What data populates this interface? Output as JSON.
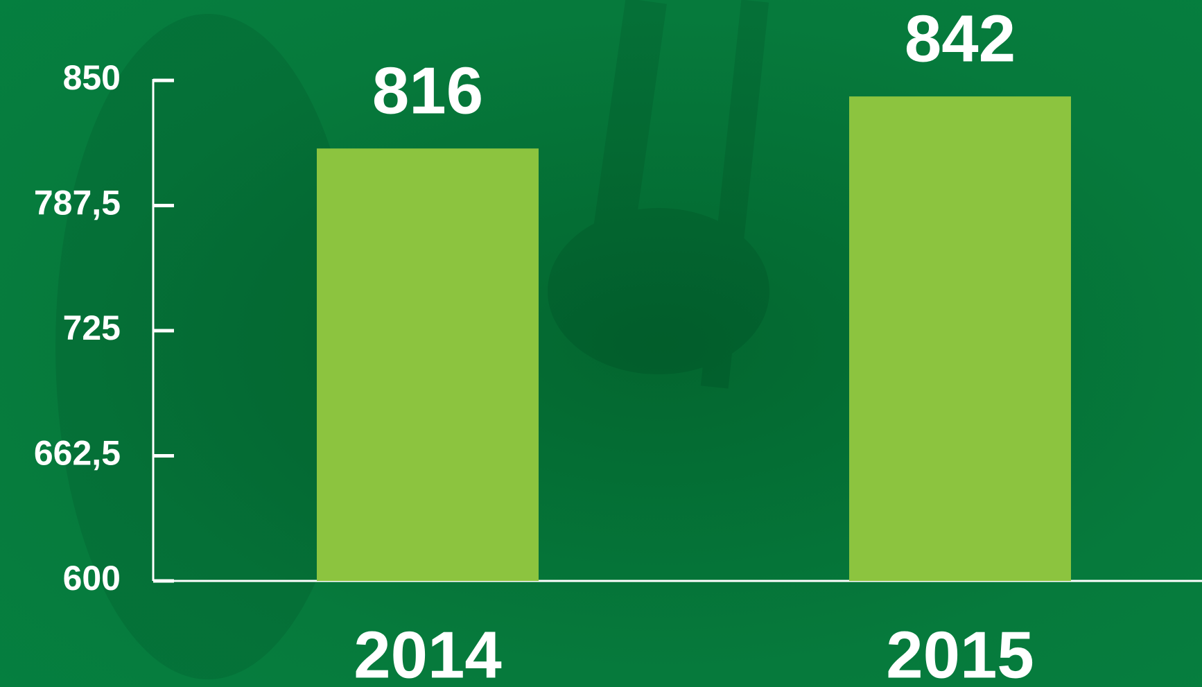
{
  "chart_data": {
    "type": "bar",
    "categories": [
      "2014",
      "2015"
    ],
    "values": [
      816,
      842
    ],
    "color": "#8cc43f",
    "ylim": [
      600,
      850
    ],
    "yticks": [
      600,
      {
        "value": 662.5,
        "label": "662,5"
      },
      725,
      {
        "value": 787.5,
        "label": "787,5"
      },
      850
    ]
  }
}
